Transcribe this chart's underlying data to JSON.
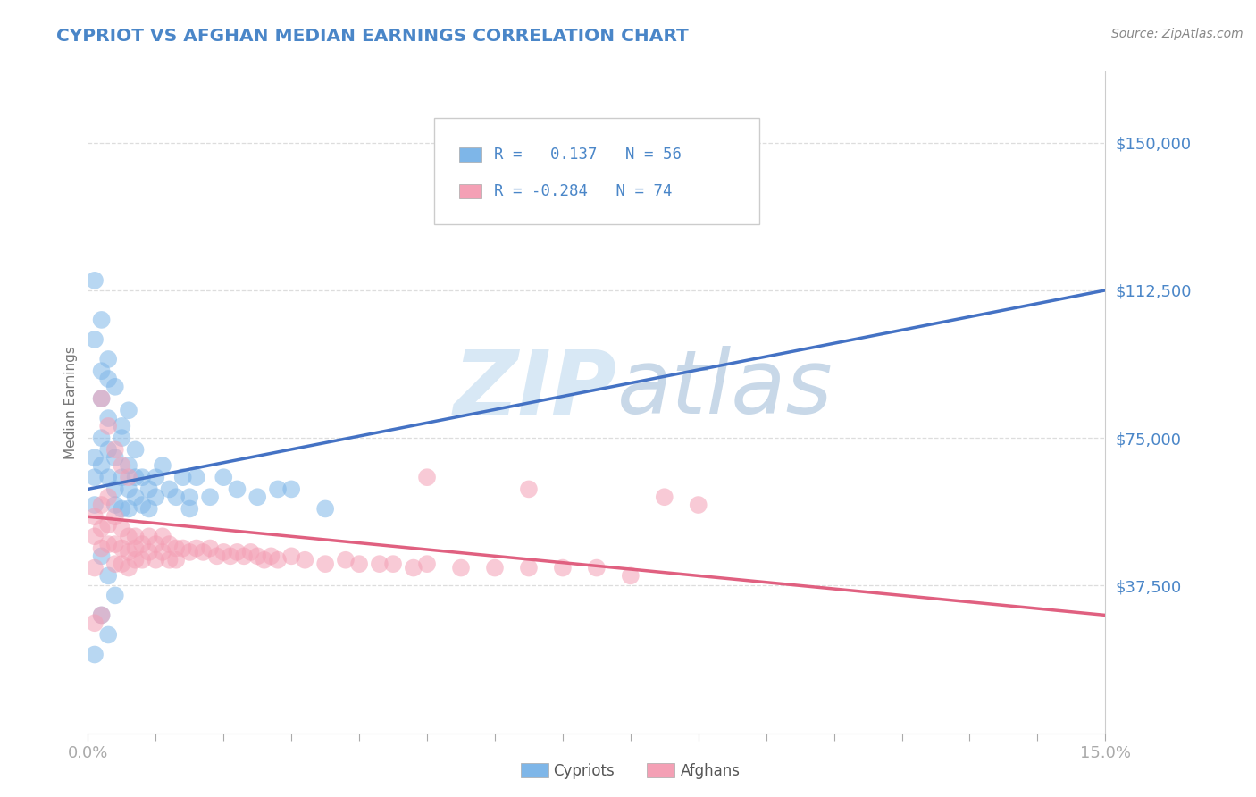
{
  "title": "CYPRIOT VS AFGHAN MEDIAN EARNINGS CORRELATION CHART",
  "source_text": "Source: ZipAtlas.com",
  "ylabel": "Median Earnings",
  "xlim": [
    0.0,
    0.15
  ],
  "ylim": [
    0,
    168000
  ],
  "yticks": [
    0,
    37500,
    75000,
    112500,
    150000
  ],
  "ytick_labels": [
    "",
    "$37,500",
    "$75,000",
    "$112,500",
    "$150,000"
  ],
  "cypriot_color": "#7eb6e8",
  "afghan_color": "#f4a0b5",
  "cypriot_line_color": "#4472c4",
  "afghan_line_color": "#e06080",
  "legend_r_cypriot": "0.137",
  "legend_n_cypriot": "56",
  "legend_r_afghan": "-0.284",
  "legend_n_afghan": "74",
  "title_color": "#4a86c8",
  "tick_color": "#4a86c8",
  "grid_color": "#dddddd",
  "cyp_trend_x0": 0.0,
  "cyp_trend_y0": 62000,
  "cyp_trend_x1": 0.15,
  "cyp_trend_y1": 112500,
  "afg_trend_x0": 0.0,
  "afg_trend_y0": 55000,
  "afg_trend_x1": 0.15,
  "afg_trend_y1": 30000,
  "cyp_x": [
    0.001,
    0.001,
    0.001,
    0.002,
    0.002,
    0.002,
    0.003,
    0.003,
    0.003,
    0.003,
    0.004,
    0.004,
    0.004,
    0.005,
    0.005,
    0.005,
    0.006,
    0.006,
    0.006,
    0.007,
    0.007,
    0.007,
    0.008,
    0.008,
    0.009,
    0.009,
    0.01,
    0.01,
    0.011,
    0.012,
    0.013,
    0.014,
    0.015,
    0.016,
    0.018,
    0.02,
    0.022,
    0.025,
    0.028,
    0.03,
    0.001,
    0.002,
    0.003,
    0.004,
    0.005,
    0.006,
    0.002,
    0.003,
    0.004,
    0.002,
    0.001,
    0.003,
    0.015,
    0.035,
    0.001,
    0.002
  ],
  "cyp_y": [
    65000,
    58000,
    70000,
    75000,
    85000,
    68000,
    90000,
    72000,
    65000,
    80000,
    62000,
    70000,
    58000,
    65000,
    75000,
    57000,
    62000,
    68000,
    57000,
    65000,
    60000,
    72000,
    58000,
    65000,
    62000,
    57000,
    65000,
    60000,
    68000,
    62000,
    60000,
    65000,
    60000,
    65000,
    60000,
    65000,
    62000,
    60000,
    62000,
    62000,
    115000,
    105000,
    95000,
    88000,
    78000,
    82000,
    45000,
    40000,
    35000,
    30000,
    20000,
    25000,
    57000,
    57000,
    100000,
    92000
  ],
  "afg_x": [
    0.001,
    0.001,
    0.002,
    0.002,
    0.002,
    0.003,
    0.003,
    0.003,
    0.004,
    0.004,
    0.004,
    0.005,
    0.005,
    0.005,
    0.006,
    0.006,
    0.006,
    0.007,
    0.007,
    0.007,
    0.008,
    0.008,
    0.009,
    0.009,
    0.01,
    0.01,
    0.011,
    0.011,
    0.012,
    0.012,
    0.013,
    0.013,
    0.014,
    0.015,
    0.016,
    0.017,
    0.018,
    0.019,
    0.02,
    0.021,
    0.022,
    0.023,
    0.024,
    0.025,
    0.026,
    0.027,
    0.028,
    0.03,
    0.032,
    0.035,
    0.038,
    0.04,
    0.043,
    0.045,
    0.048,
    0.05,
    0.055,
    0.06,
    0.065,
    0.07,
    0.075,
    0.08,
    0.002,
    0.003,
    0.004,
    0.005,
    0.006,
    0.001,
    0.05,
    0.065,
    0.085,
    0.09,
    0.001,
    0.002
  ],
  "afg_y": [
    55000,
    50000,
    58000,
    52000,
    47000,
    53000,
    48000,
    60000,
    55000,
    48000,
    43000,
    52000,
    47000,
    43000,
    50000,
    46000,
    42000,
    50000,
    47000,
    44000,
    48000,
    44000,
    50000,
    46000,
    48000,
    44000,
    50000,
    46000,
    48000,
    44000,
    47000,
    44000,
    47000,
    46000,
    47000,
    46000,
    47000,
    45000,
    46000,
    45000,
    46000,
    45000,
    46000,
    45000,
    44000,
    45000,
    44000,
    45000,
    44000,
    43000,
    44000,
    43000,
    43000,
    43000,
    42000,
    43000,
    42000,
    42000,
    42000,
    42000,
    42000,
    40000,
    85000,
    78000,
    72000,
    68000,
    65000,
    42000,
    65000,
    62000,
    60000,
    58000,
    28000,
    30000
  ]
}
